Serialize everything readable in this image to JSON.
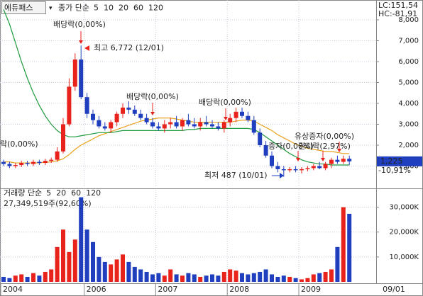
{
  "chart_data": [
    {
      "type": "candlestick",
      "title": "에듀패스",
      "legend_title": "종가 단순",
      "categories": [
        "2004",
        null,
        null,
        null,
        null,
        null,
        null,
        null,
        null,
        null,
        null,
        null,
        null,
        null,
        "2006",
        null,
        null,
        null,
        null,
        null,
        null,
        null,
        null,
        null,
        null,
        null,
        "2007",
        null,
        null,
        null,
        null,
        null,
        null,
        null,
        null,
        null,
        null,
        null,
        "2008",
        null,
        null,
        null,
        null,
        null,
        null,
        null,
        null,
        null,
        null,
        null,
        "2009",
        null,
        null,
        null,
        null,
        null,
        null,
        null,
        null
      ],
      "x_end_label": "09/01",
      "open": [
        1200,
        1100,
        1000,
        1050,
        1150,
        1100,
        1200,
        1150,
        1250,
        1300,
        1700,
        3000,
        4800,
        6100,
        4300,
        3500,
        3200,
        2900,
        2800,
        3100,
        3500,
        3800,
        3700,
        3500,
        3300,
        3100,
        2900,
        2800,
        3000,
        3100,
        2900,
        3200,
        3000,
        2900,
        3100,
        3000,
        2900,
        2800,
        3100,
        3300,
        3600,
        3400,
        3200,
        2600,
        2000,
        1500,
        1000,
        850,
        800,
        850,
        800,
        850,
        900,
        1000,
        900,
        1100,
        1300,
        1200,
        1350
      ],
      "high": [
        1300,
        1200,
        1150,
        1250,
        1250,
        1300,
        1300,
        1350,
        1400,
        1900,
        3300,
        5200,
        6400,
        6772,
        4500,
        3700,
        3400,
        3100,
        3200,
        3600,
        4000,
        4100,
        3900,
        3700,
        3500,
        3300,
        3100,
        3200,
        3300,
        3400,
        3300,
        3500,
        3300,
        3300,
        3400,
        3200,
        3100,
        3200,
        3500,
        3800,
        3800,
        3600,
        3400,
        2800,
        2200,
        1700,
        1200,
        1000,
        950,
        1000,
        950,
        1000,
        1100,
        1200,
        1200,
        1400,
        1500,
        1500,
        1500
      ],
      "low": [
        1000,
        900,
        900,
        950,
        1000,
        1000,
        1050,
        1050,
        1150,
        1200,
        1600,
        2900,
        4600,
        4200,
        3300,
        3000,
        2800,
        2700,
        2600,
        2900,
        3300,
        3500,
        3400,
        3200,
        3000,
        2800,
        2700,
        2600,
        2800,
        2800,
        2700,
        2900,
        2800,
        2700,
        2900,
        2800,
        2700,
        2600,
        2900,
        3100,
        3300,
        3100,
        2500,
        1900,
        1400,
        900,
        700,
        487,
        700,
        700,
        650,
        750,
        800,
        850,
        800,
        900,
        1100,
        1100,
        1050
      ],
      "close": [
        1100,
        1000,
        1050,
        1150,
        1100,
        1200,
        1150,
        1250,
        1300,
        1700,
        3000,
        4800,
        6100,
        4300,
        3500,
        3200,
        2900,
        2800,
        3100,
        3500,
        3800,
        3700,
        3500,
        3300,
        3100,
        2900,
        2800,
        3000,
        3100,
        2900,
        3200,
        3000,
        2900,
        3100,
        3000,
        2900,
        2800,
        3100,
        3300,
        3600,
        3400,
        3200,
        2600,
        2000,
        1500,
        1000,
        850,
        800,
        850,
        800,
        850,
        900,
        1000,
        900,
        1100,
        1300,
        1200,
        1350,
        1225
      ],
      "up_color": "#e8231c",
      "down_color": "#1f3fbf",
      "series": [
        {
          "name": "5",
          "color": "#d22ad2"
        },
        {
          "name": "10",
          "color": "#1f3fbf"
        },
        {
          "name": "20",
          "color": "#e8a21c",
          "values": [
            1200,
            1200,
            1150,
            1150,
            1150,
            1150,
            1150,
            1180,
            1200,
            1250,
            1350,
            1550,
            1800,
            2000,
            2150,
            2300,
            2450,
            2550,
            2650,
            2750,
            2850,
            2950,
            3050,
            3150,
            3200,
            3250,
            3300,
            3300,
            3300,
            3250,
            3200,
            3150,
            3100,
            3100,
            3100,
            3100,
            3100,
            3100,
            3100,
            3150,
            3200,
            3200,
            3150,
            3000,
            2850,
            2700,
            2500,
            2350,
            2200,
            2050,
            1950,
            1850,
            1800,
            1750,
            1700,
            1700,
            1650,
            1600,
            1600
          ]
        },
        {
          "name": "60",
          "color": "#1e9a3c",
          "values": [
            8500,
            7800,
            6900,
            6000,
            5200,
            4500,
            3900,
            3400,
            3000,
            2700,
            2500,
            2400,
            2400,
            2450,
            2500,
            2550,
            2600,
            2600,
            2600,
            2650,
            2700,
            2700,
            2700,
            2700,
            2700,
            2700,
            2700,
            2700,
            2700,
            2700,
            2700,
            2750,
            2750,
            2800,
            2800,
            2800,
            2800,
            2800,
            2800,
            2800,
            2800,
            2800,
            2750,
            2600,
            2400,
            2200,
            2000,
            1800,
            1600,
            1450,
            1300,
            1200,
            1150,
            1100,
            1100,
            1050,
            1050,
            1050,
            1050
          ]
        },
        {
          "name": "120",
          "color": "#8a8a8a"
        }
      ],
      "ylim": [
        0,
        8950
      ],
      "yticks": [
        {
          "value": 1000,
          "label": "1,000"
        },
        {
          "value": 2000,
          "label": "2,000"
        },
        {
          "value": 3000,
          "label": "3,000"
        },
        {
          "value": 4000,
          "label": "4,000"
        },
        {
          "value": 5000,
          "label": "5,000"
        },
        {
          "value": 6000,
          "label": "6,000"
        },
        {
          "value": 7000,
          "label": "7,000"
        },
        {
          "value": 8000,
          "label": "8,000"
        }
      ],
      "grid": true,
      "last_price_label": "1,225",
      "change_label": "-10,91%",
      "lc_label": "LC:151,54",
      "hc_label": "HC:-81,91",
      "annotations": [
        "배당락(0,00%)",
        "최고 6,772 (12/01)",
        "배당락(0,00%)",
        "배당락(0,00%)",
        "락(0,00%)",
        "유상증자(0,00%)",
        "증자(0,00%)",
        "권리락(2,97%)",
        "최저 487 (10/01)"
      ]
    },
    {
      "type": "bar",
      "legend_title": "거래량 단순",
      "values": [
        2000,
        1500,
        2500,
        3000,
        2000,
        3500,
        2500,
        4000,
        5000,
        14000,
        21000,
        12000,
        17000,
        34000,
        21000,
        16000,
        10000,
        8000,
        7000,
        9000,
        11000,
        8000,
        6000,
        5000,
        4000,
        3000,
        3500,
        2500,
        5000,
        3000,
        2500,
        3500,
        3000,
        2000,
        2500,
        3000,
        2500,
        4000,
        5000,
        4500,
        3500,
        3000,
        3500,
        4000,
        5000,
        3000,
        2000,
        2500,
        2000,
        1500,
        1000,
        1500,
        3000,
        3500,
        4000,
        5000,
        14000,
        30000,
        27349.519
      ],
      "last_volume_label": "27,349,519주(92,60%)",
      "series": [
        {
          "name": "5",
          "color": "#d22ad2"
        },
        {
          "name": "20",
          "color": "#e8a21c"
        },
        {
          "name": "60",
          "color": "#1e9a3c"
        },
        {
          "name": "120",
          "color": "#8a8a8a"
        }
      ],
      "ylim": [
        0,
        37000
      ],
      "yticks": [
        {
          "value": 10000,
          "label": "10,000K"
        },
        {
          "value": 20000,
          "label": "20,000K"
        },
        {
          "value": 30000,
          "label": "30,000K"
        }
      ],
      "grid": true
    }
  ]
}
